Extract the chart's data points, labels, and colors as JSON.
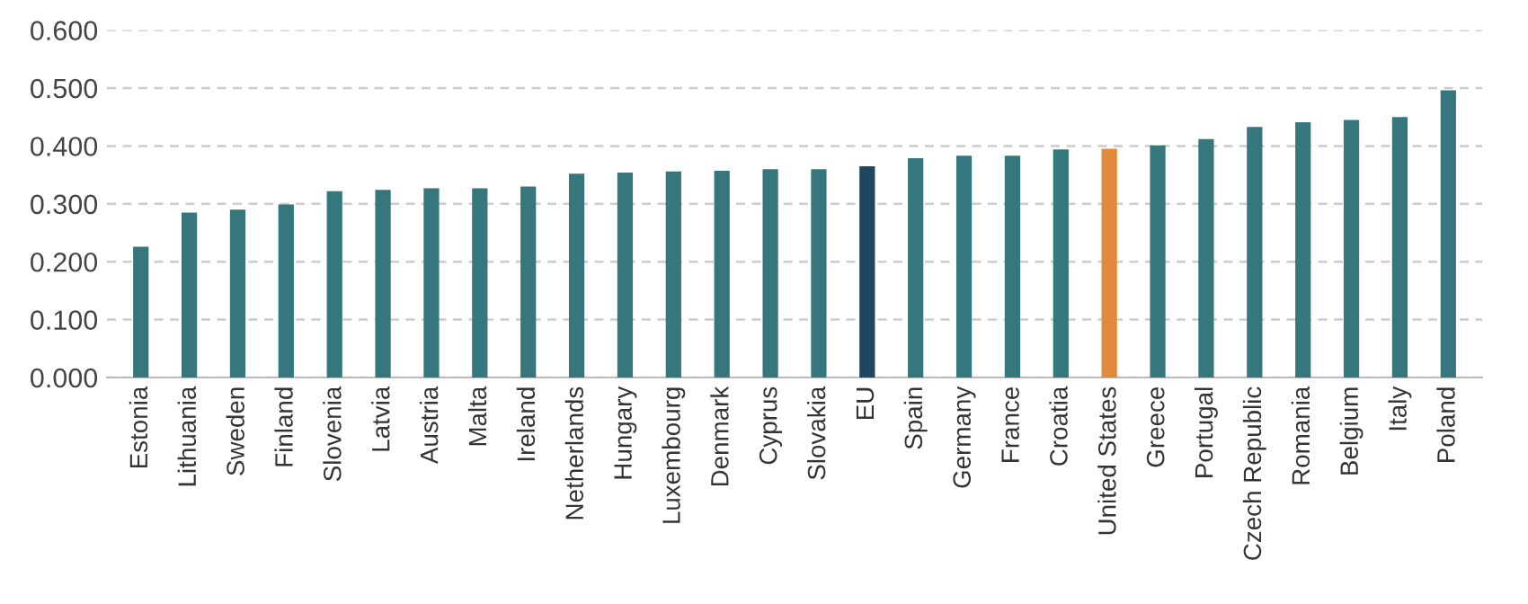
{
  "chart_data": {
    "type": "bar",
    "categories": [
      "Estonia",
      "Lithuania",
      "Sweden",
      "Finland",
      "Slovenia",
      "Latvia",
      "Austria",
      "Malta",
      "Ireland",
      "Netherlands",
      "Hungary",
      "Luxembourg",
      "Denmark",
      "Cyprus",
      "Slovakia",
      "EU",
      "Spain",
      "Germany",
      "France",
      "Croatia",
      "United States",
      "Greece",
      "Portugal",
      "Czech Republic",
      "Romania",
      "Belgium",
      "Italy",
      "Poland"
    ],
    "values": [
      0.226,
      0.285,
      0.29,
      0.299,
      0.322,
      0.324,
      0.327,
      0.327,
      0.33,
      0.352,
      0.354,
      0.356,
      0.357,
      0.36,
      0.36,
      0.365,
      0.379,
      0.383,
      0.383,
      0.394,
      0.395,
      0.401,
      0.412,
      0.433,
      0.441,
      0.445,
      0.45,
      0.496
    ],
    "colors": [
      "#36777e",
      "#36777e",
      "#36777e",
      "#36777e",
      "#36777e",
      "#36777e",
      "#36777e",
      "#36777e",
      "#36777e",
      "#36777e",
      "#36777e",
      "#36777e",
      "#36777e",
      "#36777e",
      "#36777e",
      "#1f4560",
      "#36777e",
      "#36777e",
      "#36777e",
      "#36777e",
      "#e28a3c",
      "#36777e",
      "#36777e",
      "#36777e",
      "#36777e",
      "#36777e",
      "#36777e",
      "#36777e"
    ],
    "ylim": [
      0,
      0.6
    ],
    "yticks": [
      {
        "value": 0,
        "label": "0.000"
      },
      {
        "value": 0.1,
        "label": "0.100"
      },
      {
        "value": 0.2,
        "label": "0.200"
      },
      {
        "value": 0.3,
        "label": "0.300"
      },
      {
        "value": 0.4,
        "label": "0.400"
      },
      {
        "value": 0.5,
        "label": "0.500"
      },
      {
        "value": 0.6,
        "label": "0.600"
      }
    ],
    "grid": "y",
    "legend": false
  }
}
